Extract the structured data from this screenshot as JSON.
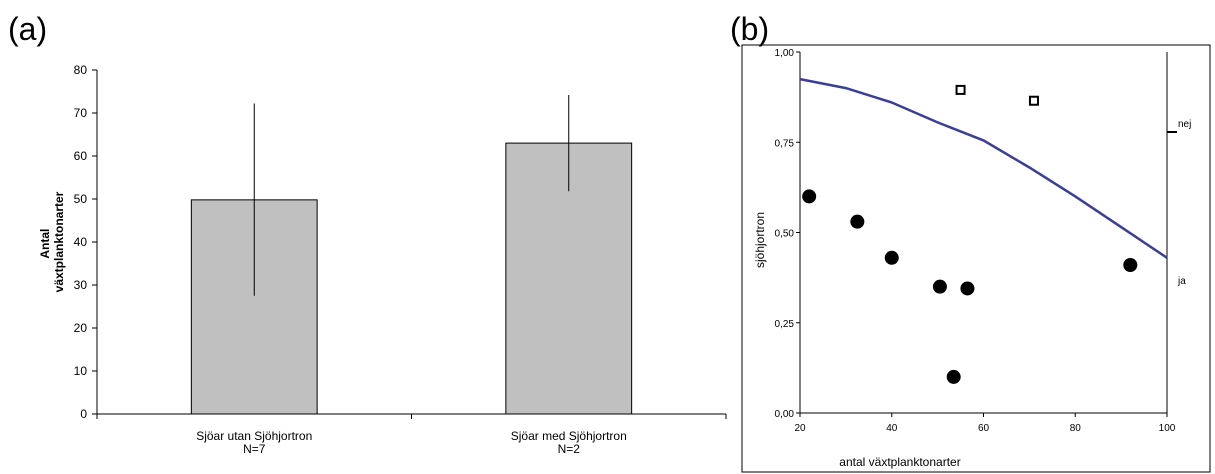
{
  "panel_a": {
    "label": "(a)",
    "ylabel_line1": "Antal",
    "ylabel_line2": "växtplanktonarter",
    "category_lines": [
      [
        "Sjöar utan Sjöhjortron",
        "N=7"
      ],
      [
        "Sjöar med Sjöhjortron",
        "N=2"
      ]
    ]
  },
  "panel_b": {
    "label": "(b)",
    "xlabel": "antal växtplanktonarter",
    "ylabel": "sjöhjortron",
    "right_labels": {
      "top": "nej",
      "bottom": "ja"
    }
  },
  "colors": {
    "bar_fill": "#c0c0c0",
    "curve": "#3a3f94",
    "marker": "#000000"
  },
  "chart_data": [
    {
      "type": "bar",
      "categories": [
        "Sjöar utan Sjöhjortron\nN=7",
        "Sjöar med Sjöhjortron\nN=2"
      ],
      "values": [
        49.8,
        63.0
      ],
      "error_low": [
        27.5,
        51.8
      ],
      "error_high": [
        72.2,
        74.2
      ],
      "title": "",
      "xlabel": "",
      "ylabel": "Antal växtplanktonarter",
      "ylim": [
        0,
        80
      ],
      "yticks": [
        0,
        10,
        20,
        30,
        40,
        50,
        60,
        70,
        80
      ],
      "grid": false
    },
    {
      "type": "scatter",
      "title": "",
      "xlabel": "antal växtplanktonarter",
      "ylabel": "sjöhjortron",
      "xlim": [
        20,
        100
      ],
      "ylim": [
        0,
        1
      ],
      "xticks": [
        "20",
        "40",
        "60",
        "80",
        "100"
      ],
      "yticks": [
        "0,00",
        "0,25",
        "0,50",
        "0,75",
        "1,00"
      ],
      "grid": false,
      "series": [
        {
          "marker": "filled-circle",
          "points": [
            [
              22,
              0.6
            ],
            [
              32.5,
              0.53
            ],
            [
              40,
              0.43
            ],
            [
              50.5,
              0.35
            ],
            [
              56.5,
              0.345
            ],
            [
              53.5,
              0.1
            ],
            [
              92,
              0.41
            ]
          ]
        },
        {
          "marker": "open-square",
          "points": [
            [
              55,
              0.895
            ],
            [
              71,
              0.865
            ]
          ]
        },
        {
          "marker": "line",
          "points": [
            [
              20,
              0.925
            ],
            [
              30,
              0.9
            ],
            [
              40,
              0.86
            ],
            [
              50,
              0.805
            ],
            [
              60,
              0.755
            ],
            [
              70,
              0.68
            ],
            [
              80,
              0.6
            ],
            [
              90,
              0.515
            ],
            [
              100,
              0.43
            ]
          ]
        }
      ]
    }
  ]
}
